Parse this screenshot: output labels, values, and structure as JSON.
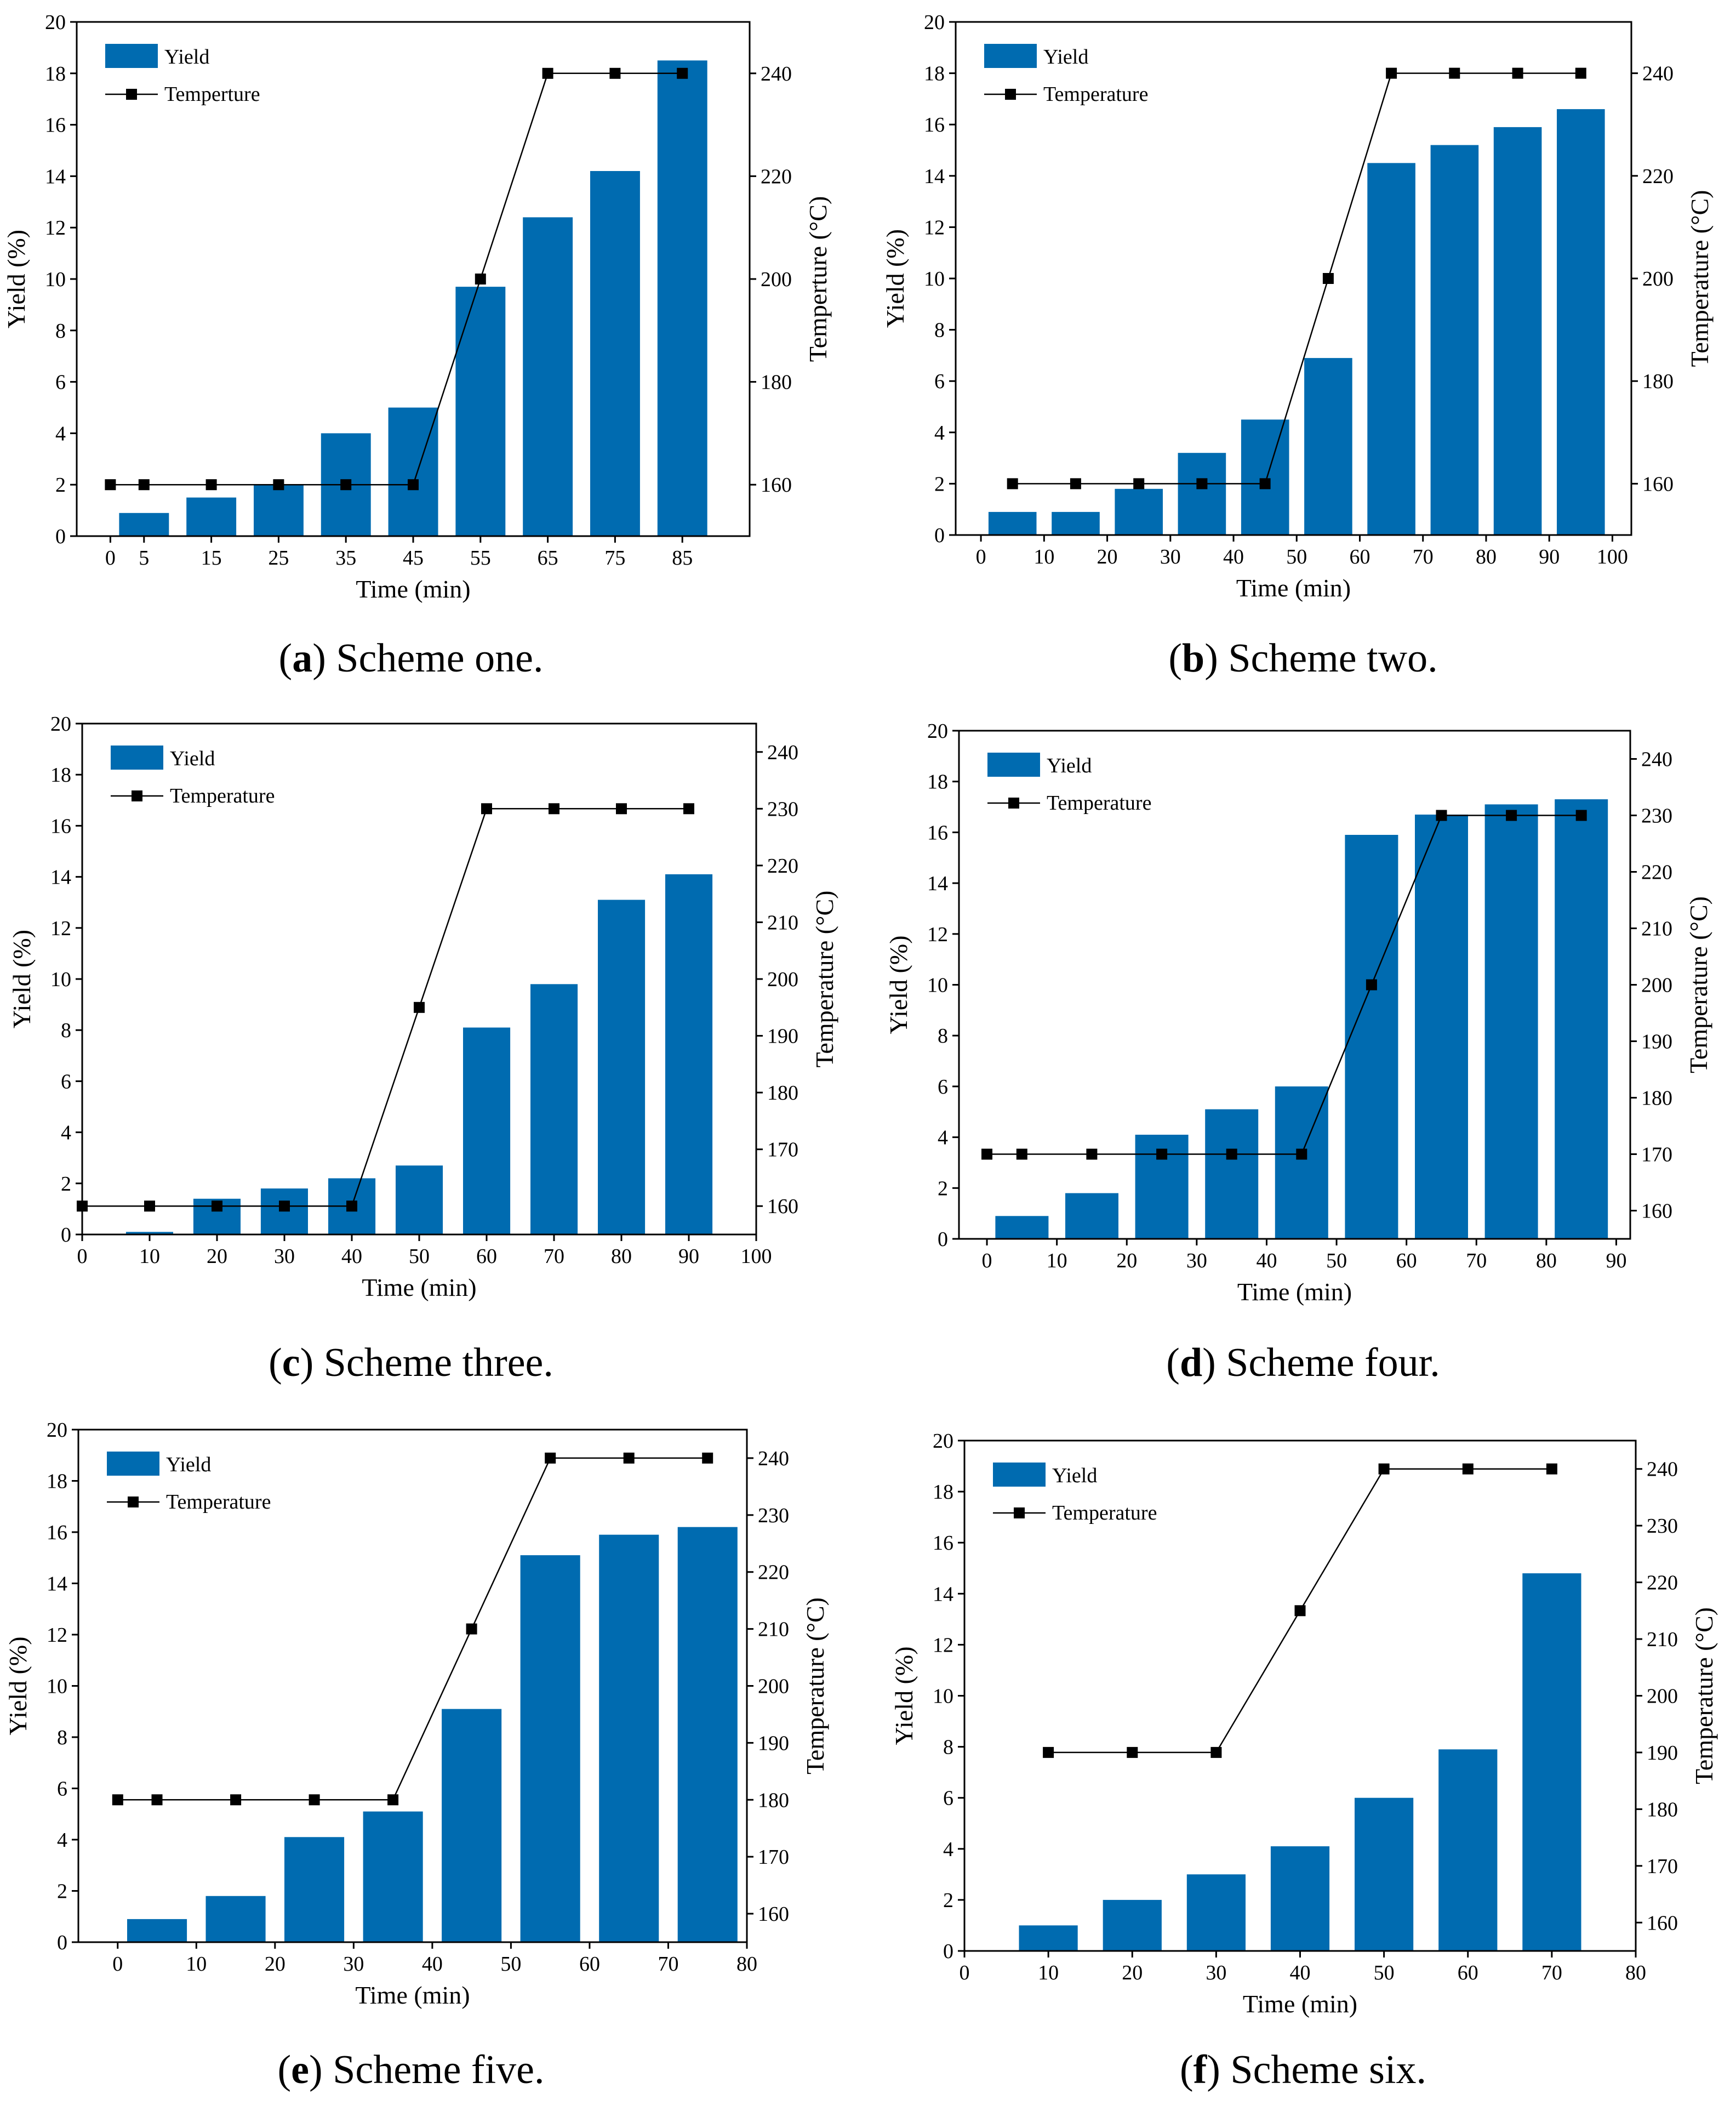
{
  "bar_color": "#006bb0",
  "line_color": "#000000",
  "chart_data": [
    {
      "type": "bar",
      "panel": "a",
      "caption_letter": "a",
      "caption_text": "Scheme one.",
      "xlabel": "Time (min)",
      "ylabel": "Yield (%)",
      "ylabel_right": "Temperture (°C)",
      "legend": {
        "bar": "Yield",
        "line": "Temperture"
      },
      "xlim": [
        -5,
        95
      ],
      "ylim": [
        0,
        20
      ],
      "y2lim": [
        150,
        250
      ],
      "x_ticks": [
        0,
        5,
        15,
        25,
        35,
        45,
        55,
        65,
        75,
        85
      ],
      "y_ticks": [
        0,
        2,
        4,
        6,
        8,
        10,
        12,
        14,
        16,
        18,
        20
      ],
      "y2_ticks": [
        160,
        180,
        200,
        220,
        240
      ],
      "bar_width": 7.4,
      "bars": {
        "x": [
          5,
          15,
          25,
          35,
          45,
          55,
          65,
          75,
          85
        ],
        "values": [
          0.9,
          1.5,
          2.0,
          4.0,
          5.0,
          9.7,
          12.4,
          14.2,
          18.5
        ]
      },
      "line": {
        "x": [
          0,
          5,
          15,
          25,
          35,
          45,
          55,
          65,
          75,
          85
        ],
        "values": [
          160,
          160,
          160,
          160,
          160,
          160,
          200,
          240,
          240,
          240
        ]
      }
    },
    {
      "type": "bar",
      "panel": "b",
      "caption_letter": "b",
      "caption_text": "Scheme two.",
      "xlabel": "Time (min)",
      "ylabel": "Yield (%)",
      "ylabel_right": "Temperature (°C)",
      "legend": {
        "bar": "Yield",
        "line": "Temperature"
      },
      "xlim": [
        -4,
        103
      ],
      "ylim": [
        0,
        20
      ],
      "y2lim": [
        150,
        250
      ],
      "x_ticks": [
        0,
        10,
        20,
        30,
        40,
        50,
        60,
        70,
        80,
        90,
        100
      ],
      "y_ticks": [
        0,
        2,
        4,
        6,
        8,
        10,
        12,
        14,
        16,
        18,
        20
      ],
      "y2_ticks": [
        160,
        180,
        200,
        220,
        240
      ],
      "bar_width": 7.6,
      "bars": {
        "x": [
          5,
          15,
          25,
          35,
          45,
          55,
          65,
          75,
          85,
          95
        ],
        "values": [
          0.9,
          0.9,
          1.8,
          3.2,
          4.5,
          6.9,
          14.5,
          15.2,
          15.9,
          16.6
        ]
      },
      "line": {
        "x": [
          5,
          15,
          25,
          35,
          45,
          55,
          65,
          75,
          85,
          95
        ],
        "values": [
          160,
          160,
          160,
          160,
          160,
          200,
          240,
          240,
          240,
          240
        ]
      }
    },
    {
      "type": "bar",
      "panel": "c",
      "caption_letter": "c",
      "caption_text": "Scheme three.",
      "xlabel": "Time (min)",
      "ylabel": "Yield (%)",
      "ylabel_right": "Temperature (°C)",
      "legend": {
        "bar": "Yield",
        "line": "Temperature"
      },
      "xlim": [
        0,
        100
      ],
      "ylim": [
        0,
        20
      ],
      "y2lim": [
        155,
        245
      ],
      "x_ticks": [
        0,
        10,
        20,
        30,
        40,
        50,
        60,
        70,
        80,
        90,
        100
      ],
      "y_ticks": [
        0,
        2,
        4,
        6,
        8,
        10,
        12,
        14,
        16,
        18,
        20
      ],
      "y2_ticks": [
        160,
        170,
        180,
        190,
        200,
        210,
        220,
        230,
        240
      ],
      "bar_width": 7.0,
      "bars": {
        "x": [
          10,
          20,
          30,
          40,
          50,
          60,
          70,
          80,
          90
        ],
        "values": [
          0.1,
          1.4,
          1.8,
          2.2,
          2.7,
          8.1,
          9.8,
          13.1,
          14.1
        ]
      },
      "line": {
        "x": [
          0,
          10,
          20,
          30,
          40,
          50,
          60,
          70,
          80,
          90
        ],
        "values": [
          160,
          160,
          160,
          160,
          160,
          195,
          230,
          230,
          230,
          230
        ]
      }
    },
    {
      "type": "bar",
      "panel": "d",
      "caption_letter": "d",
      "caption_text": "Scheme four.",
      "xlabel": "Time (min)",
      "ylabel": "Yield (%)",
      "ylabel_right": "Temperature (°C)",
      "legend": {
        "bar": "Yield",
        "line": "Temperature"
      },
      "xlim": [
        -4,
        92
      ],
      "ylim": [
        0,
        20
      ],
      "y2lim": [
        155,
        245
      ],
      "x_ticks": [
        0,
        10,
        20,
        30,
        40,
        50,
        60,
        70,
        80,
        90
      ],
      "y_ticks": [
        0,
        2,
        4,
        6,
        8,
        10,
        12,
        14,
        16,
        18,
        20
      ],
      "y2_ticks": [
        160,
        170,
        180,
        190,
        200,
        210,
        220,
        230,
        240
      ],
      "bar_width": 7.6,
      "bars": {
        "x": [
          5,
          15,
          25,
          35,
          45,
          55,
          65,
          75,
          85
        ],
        "values": [
          0.9,
          1.8,
          4.1,
          5.1,
          6.0,
          15.9,
          16.7,
          17.1,
          17.3
        ]
      },
      "line": {
        "x": [
          0,
          5,
          15,
          25,
          35,
          45,
          55,
          65,
          75,
          85
        ],
        "values": [
          170,
          170,
          170,
          170,
          170,
          170,
          200,
          230,
          230,
          230
        ]
      }
    },
    {
      "type": "bar",
      "panel": "e",
      "caption_letter": "e",
      "caption_text": "Scheme five.",
      "xlabel": "Time (min)",
      "ylabel": "Yield (%)",
      "ylabel_right": "Temperature (°C)",
      "legend": {
        "bar": "Yield",
        "line": "Temperature"
      },
      "xlim": [
        -5,
        80
      ],
      "ylim": [
        0,
        20
      ],
      "y2lim": [
        155,
        245
      ],
      "x_ticks": [
        0,
        10,
        20,
        30,
        40,
        50,
        60,
        70,
        80
      ],
      "y_ticks": [
        0,
        2,
        4,
        6,
        8,
        10,
        12,
        14,
        16,
        18,
        20
      ],
      "y2_ticks": [
        160,
        170,
        180,
        190,
        200,
        210,
        220,
        230,
        240
      ],
      "bar_width": 7.6,
      "bars": {
        "x": [
          5,
          15,
          25,
          35,
          45,
          55,
          65,
          75
        ],
        "values": [
          0.9,
          1.8,
          4.1,
          5.1,
          9.1,
          15.1,
          15.9,
          16.2
        ]
      },
      "line": {
        "x": [
          0,
          5,
          15,
          25,
          35,
          45,
          55,
          65,
          75
        ],
        "values": [
          180,
          180,
          180,
          180,
          180,
          210,
          240,
          240,
          240
        ]
      }
    },
    {
      "type": "bar",
      "panel": "f",
      "caption_letter": "f",
      "caption_text": "Scheme six.",
      "xlabel": "Time (min)",
      "ylabel": "Yield (%)",
      "ylabel_right": "Temperature (°C)",
      "legend": {
        "bar": "Yield",
        "line": "Temperature"
      },
      "xlim": [
        0,
        80
      ],
      "ylim": [
        0,
        20
      ],
      "y2lim": [
        155,
        245
      ],
      "x_ticks": [
        0,
        10,
        20,
        30,
        40,
        50,
        60,
        70,
        80
      ],
      "y_ticks": [
        0,
        2,
        4,
        6,
        8,
        10,
        12,
        14,
        16,
        18,
        20
      ],
      "y2_ticks": [
        160,
        170,
        180,
        190,
        200,
        210,
        220,
        230,
        240
      ],
      "bar_width": 7.0,
      "bars": {
        "x": [
          10,
          20,
          30,
          40,
          50,
          60,
          70
        ],
        "values": [
          1.0,
          2.0,
          3.0,
          4.1,
          6.0,
          7.9,
          14.8
        ]
      },
      "line": {
        "x": [
          10,
          20,
          30,
          40,
          50,
          60,
          70
        ],
        "values": [
          190,
          190,
          190,
          215,
          240,
          240,
          240
        ]
      }
    }
  ]
}
